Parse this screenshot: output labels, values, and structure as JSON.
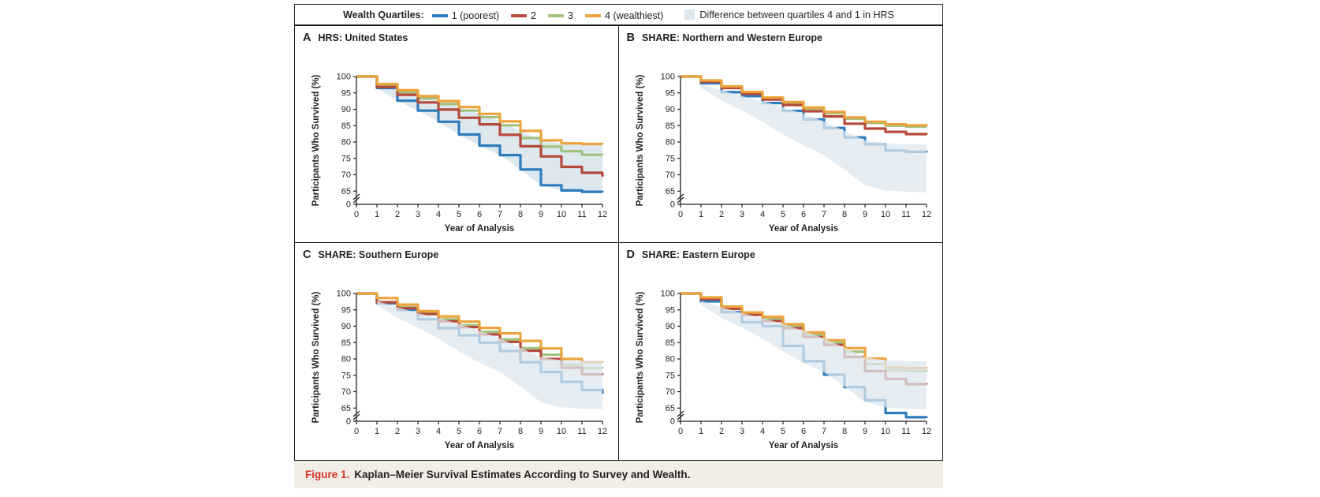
{
  "legend": {
    "title": "Wealth Quartiles:",
    "entries": [
      {
        "key": "q1",
        "label": "1 (poorest)"
      },
      {
        "key": "q2",
        "label": "2"
      },
      {
        "key": "q3",
        "label": "3"
      },
      {
        "key": "q4",
        "label": "4 (wealthiest)"
      }
    ],
    "shade_label": "Difference between quartiles 4 and 1 in HRS"
  },
  "caption": {
    "label": "Figure 1.",
    "text": "Kaplan–Meier Survival Estimates According to Survey and Wealth."
  },
  "colors": {
    "q1": "#2e7cbc",
    "q2": "#b5493b",
    "q3": "#a2c17e",
    "q4": "#eba43c",
    "shade": "#dde7ee",
    "shade_overlay": "rgba(221,231,238,0.75)",
    "axis": "#231f20"
  },
  "chart_data": {
    "type": "line",
    "step": true,
    "xlabel": "Year of Analysis",
    "ylabel": "Participants Who Survived (%)",
    "yticks": [
      100,
      95,
      90,
      85,
      80,
      75,
      70,
      65
    ],
    "y_axis_break": true,
    "y_zero_label": "0",
    "xticks": [
      0,
      1,
      2,
      3,
      4,
      5,
      6,
      7,
      8,
      9,
      10,
      11,
      12
    ],
    "ylim_main": [
      65,
      100
    ],
    "hrs_band": {
      "label": "Difference between quartiles 4 and 1 in HRS",
      "upper": [
        100,
        97.7,
        95.8,
        94.0,
        92.5,
        90.7,
        88.6,
        86.3,
        83.4,
        80.5,
        79.6,
        79.4,
        79.3
      ],
      "lower": [
        100,
        96.5,
        92.6,
        89.6,
        86.2,
        82.3,
        78.9,
        76.0,
        71.6,
        66.8,
        65.2,
        64.8,
        64.6
      ]
    },
    "panels": [
      {
        "letter": "A",
        "title": "HRS: United States",
        "band_on_top": false,
        "series": [
          {
            "key": "q1",
            "name": "1 (poorest)",
            "values": [
              100,
              96.5,
              92.6,
              89.6,
              86.2,
              82.3,
              78.9,
              76.0,
              71.6,
              66.8,
              65.2,
              64.8,
              64.6
            ]
          },
          {
            "key": "q3",
            "name": "3",
            "values": [
              100,
              97.1,
              95.1,
              93.3,
              91.6,
              89.6,
              87.6,
              85.1,
              81.2,
              78.6,
              77.2,
              76.1,
              76.0
            ]
          },
          {
            "key": "q2",
            "name": "2",
            "values": [
              100,
              96.8,
              94.4,
              92.1,
              89.9,
              87.4,
              85.4,
              82.2,
              78.7,
              75.6,
              72.4,
              70.6,
              69.4
            ]
          },
          {
            "key": "q4",
            "name": "4 (wealthiest)",
            "values": [
              100,
              97.7,
              95.8,
              94.0,
              92.5,
              90.7,
              88.6,
              86.3,
              83.4,
              80.5,
              79.6,
              79.4,
              79.3
            ]
          }
        ]
      },
      {
        "letter": "B",
        "title": "SHARE: Northern and Western Europe",
        "band_on_top": true,
        "series": [
          {
            "key": "q1",
            "name": "1 (poorest)",
            "values": [
              100,
              97.9,
              95.2,
              94.0,
              91.9,
              89.5,
              86.9,
              84.3,
              81.4,
              79.3,
              77.4,
              77.0,
              76.8
            ]
          },
          {
            "key": "q3",
            "name": "3",
            "values": [
              100,
              98.7,
              96.8,
              95.1,
              93.4,
              91.9,
              90.2,
              88.8,
              87.1,
              85.8,
              85.0,
              84.7,
              84.6
            ]
          },
          {
            "key": "q2",
            "name": "2",
            "values": [
              100,
              98.4,
              96.5,
              94.7,
              93.0,
              91.3,
              89.4,
              87.8,
              85.6,
              84.1,
              83.1,
              82.4,
              82.3
            ]
          },
          {
            "key": "q4",
            "name": "4 (wealthiest)",
            "values": [
              100,
              98.8,
              97.0,
              95.3,
              93.6,
              92.2,
              90.5,
              89.2,
              87.5,
              86.2,
              85.4,
              85.1,
              85.0
            ]
          }
        ]
      },
      {
        "letter": "C",
        "title": "SHARE: Southern Europe",
        "band_on_top": true,
        "series": [
          {
            "key": "q1",
            "name": "1 (poorest)",
            "values": [
              100,
              97.0,
              95.0,
              92.1,
              89.4,
              87.2,
              85.0,
              82.4,
              79.0,
              76.0,
              73.0,
              70.5,
              69.3
            ]
          },
          {
            "key": "q3",
            "name": "3",
            "values": [
              100,
              97.4,
              95.8,
              94.0,
              92.1,
              90.3,
              88.3,
              86.0,
              83.3,
              81.3,
              78.2,
              77.2,
              77.1
            ]
          },
          {
            "key": "q2",
            "name": "2",
            "values": [
              100,
              97.3,
              95.5,
              93.7,
              91.5,
              89.7,
              87.5,
              85.2,
              82.5,
              80.0,
              77.3,
              75.3,
              75.1
            ]
          },
          {
            "key": "q4",
            "name": "4 (wealthiest)",
            "values": [
              100,
              98.6,
              96.6,
              94.6,
              93.0,
              91.4,
              89.5,
              87.8,
              85.5,
              83.2,
              80.0,
              79.0,
              78.9
            ]
          }
        ]
      },
      {
        "letter": "D",
        "title": "SHARE: Eastern Europe",
        "band_on_top": true,
        "series": [
          {
            "key": "q1",
            "name": "1 (poorest)",
            "values": [
              100,
              97.6,
              94.3,
              91.2,
              90.0,
              84.0,
              79.3,
              75.2,
              71.4,
              67.4,
              63.5,
              62.2,
              62.0
            ]
          },
          {
            "key": "q3",
            "name": "3",
            "values": [
              100,
              98.7,
              95.5,
              93.7,
              92.4,
              90.0,
              87.5,
              84.9,
              82.2,
              78.4,
              76.5,
              76.3,
              76.2
            ]
          },
          {
            "key": "q2",
            "name": "2",
            "values": [
              100,
              98.3,
              95.3,
              93.5,
              91.6,
              89.4,
              86.7,
              84.3,
              80.6,
              76.3,
              73.9,
              72.3,
              72.2
            ]
          },
          {
            "key": "q4",
            "name": "4 (wealthiest)",
            "values": [
              100,
              98.8,
              96.0,
              94.2,
              92.9,
              90.6,
              88.1,
              85.7,
              83.3,
              80.1,
              77.4,
              77.2,
              77.1
            ]
          }
        ]
      }
    ]
  }
}
